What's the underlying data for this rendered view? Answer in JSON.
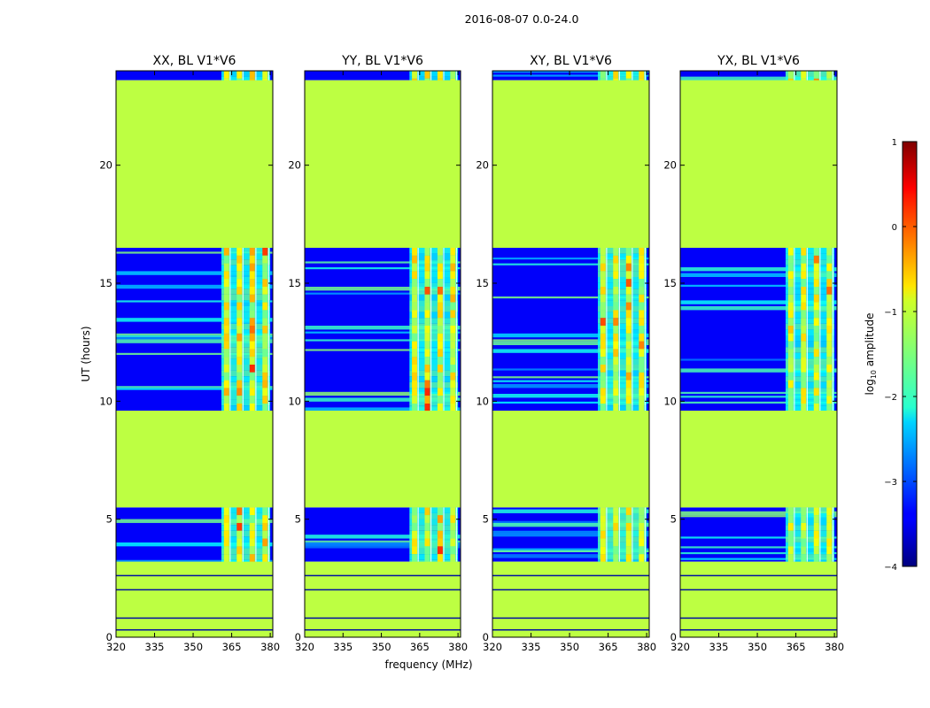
{
  "figure": {
    "suptitle": "2016-08-07 0.0-24.0",
    "ylabel": "UT (hours)",
    "xlabel": "frequency (MHz)"
  },
  "chart_data": {
    "type": "heatmap",
    "title": "2016-08-07 0.0-24.0",
    "xlabel": "frequency (MHz)",
    "ylabel": "UT (hours)",
    "xlim": [
      320,
      381
    ],
    "ylim": [
      0,
      24
    ],
    "x_ticks": [
      "320",
      "335",
      "350",
      "365",
      "380"
    ],
    "y_ticks": [
      "0",
      "5",
      "10",
      "15",
      "20"
    ],
    "panels": [
      {
        "title": "XX, BL V1*V6",
        "rfi_strength": 1.0
      },
      {
        "title": "YY, BL V1*V6",
        "rfi_strength": 0.9
      },
      {
        "title": "XY, BL V1*V6",
        "rfi_strength": 0.8
      },
      {
        "title": "YX, BL V1*V6",
        "rfi_strength": 0.75
      }
    ],
    "flagged_value": -1.2,
    "flagged_ut_ranges": [
      [
        0.0,
        3.2
      ],
      [
        5.5,
        9.6
      ],
      [
        16.5,
        23.6
      ]
    ],
    "observed_ut_ranges": [
      [
        3.2,
        5.5
      ],
      [
        9.6,
        16.5
      ],
      [
        23.6,
        24.0
      ]
    ],
    "background_level": -3.4,
    "rfi_band_mhz": [
      361,
      380
    ],
    "rfi_channels_mhz": [
      363,
      368,
      373,
      378
    ],
    "colorbar": {
      "label": "log10 amplitude",
      "label_main": "log",
      "label_sub": "10",
      "label_rest": " amplitude",
      "min": -4,
      "max": 1,
      "ticks": [
        "1",
        "0",
        "−1",
        "−2",
        "−3",
        "−4"
      ],
      "colormap": "jet"
    }
  }
}
